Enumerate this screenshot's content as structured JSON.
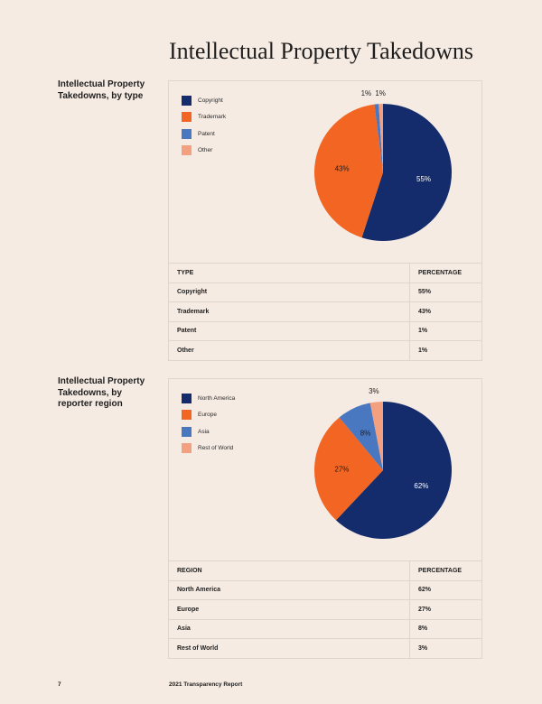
{
  "page": {
    "title": "Intellectual Property Takedowns",
    "page_number": "7",
    "report_name": "2021 Transparency Report"
  },
  "chart_data": [
    {
      "type": "pie",
      "label": "Intellectual Property Takedowns, by type",
      "categories": [
        "Copyright",
        "Trademark",
        "Patent",
        "Other"
      ],
      "values": [
        55,
        43,
        1,
        1
      ],
      "value_labels": [
        "55%",
        "43%",
        "1%",
        "1%"
      ],
      "colors": [
        "#142c6b",
        "#f26522",
        "#4a78c0",
        "#f3a080"
      ],
      "legend_position": "top-left",
      "table": {
        "headers": [
          "TYPE",
          "PERCENTAGE"
        ],
        "rows": [
          [
            "Copyright",
            "55%"
          ],
          [
            "Trademark",
            "43%"
          ],
          [
            "Patent",
            "1%"
          ],
          [
            "Other",
            "1%"
          ]
        ]
      }
    },
    {
      "type": "pie",
      "label": "Intellectual Property Takedowns, by reporter region",
      "categories": [
        "North America",
        "Europe",
        "Asia",
        "Rest of World"
      ],
      "values": [
        62,
        27,
        8,
        3
      ],
      "value_labels": [
        "62%",
        "27%",
        "8%",
        "3%"
      ],
      "colors": [
        "#142c6b",
        "#f26522",
        "#4a78c0",
        "#f3a080"
      ],
      "legend_position": "top-left",
      "table": {
        "headers": [
          "REGION",
          "PERCENTAGE"
        ],
        "rows": [
          [
            "North America",
            "62%"
          ],
          [
            "Europe",
            "27%"
          ],
          [
            "Asia",
            "8%"
          ],
          [
            "Rest of World",
            "3%"
          ]
        ]
      }
    }
  ]
}
